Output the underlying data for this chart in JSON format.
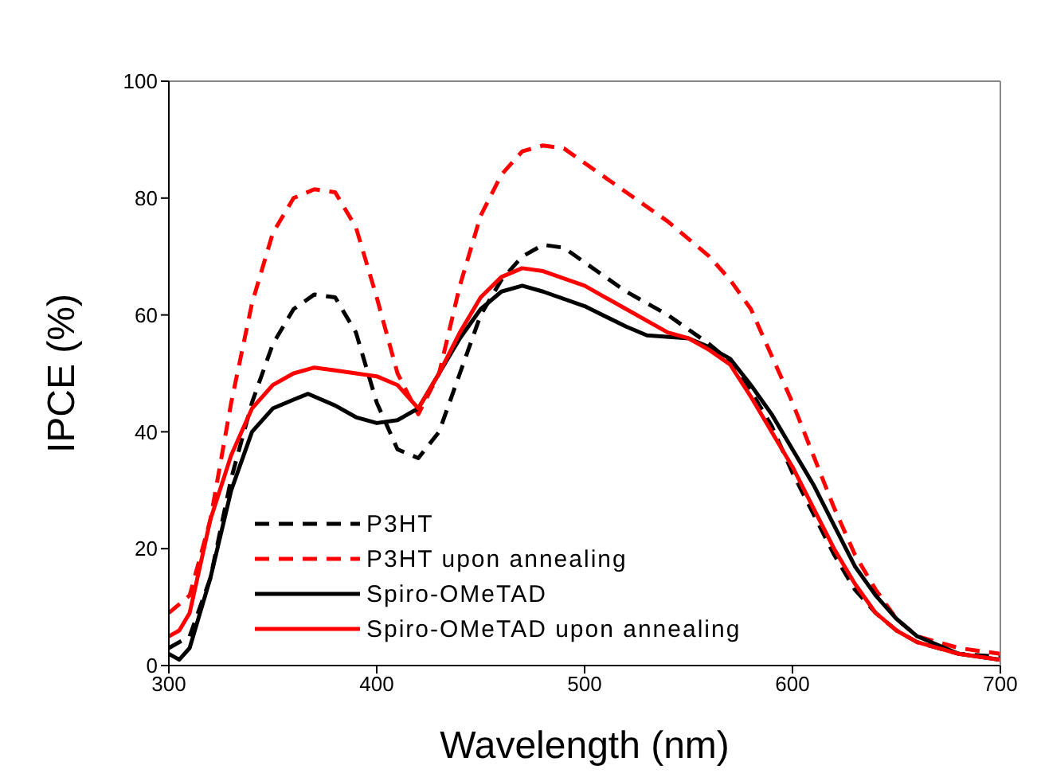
{
  "chart_data": {
    "type": "line",
    "xlabel": "Wavelength (nm)",
    "ylabel": "IPCE (%)",
    "xlim": [
      300,
      700
    ],
    "xticks": [
      300,
      400,
      500,
      600,
      700
    ],
    "ylim": [
      0,
      100
    ],
    "yticks": [
      0,
      20,
      40,
      60,
      80,
      100
    ],
    "legend": "bottom left",
    "marker": "none",
    "series": [
      {
        "name": "P3HT",
        "color": "#000000",
        "line_style": "dashed",
        "x": [
          300,
          310,
          320,
          330,
          340,
          350,
          360,
          370,
          380,
          390,
          400,
          410,
          420,
          430,
          440,
          450,
          460,
          470,
          480,
          490,
          500,
          520,
          540,
          560,
          570,
          580,
          590,
          600,
          610,
          620,
          630,
          640,
          650,
          660,
          680,
          700
        ],
        "values": [
          3,
          5,
          15,
          32,
          45,
          55,
          61,
          63.5,
          63,
          57,
          45,
          37,
          35.5,
          40,
          50,
          60,
          66,
          70,
          72,
          71.5,
          69,
          64,
          60,
          55,
          52,
          47,
          41,
          33,
          26,
          19,
          13,
          9,
          6,
          4,
          2,
          1.5
        ]
      },
      {
        "name": "P3HT upon annealing",
        "color": "#ff0000",
        "line_style": "dashed",
        "x": [
          300,
          310,
          320,
          330,
          340,
          350,
          360,
          370,
          380,
          390,
          400,
          410,
          420,
          430,
          440,
          450,
          460,
          470,
          480,
          490,
          500,
          520,
          540,
          560,
          570,
          580,
          590,
          600,
          610,
          620,
          630,
          640,
          650,
          660,
          680,
          700
        ],
        "values": [
          9,
          12,
          25,
          45,
          62,
          74,
          80,
          81.5,
          81,
          75,
          63,
          50,
          43,
          50,
          65,
          77,
          84,
          88,
          89,
          88.5,
          86,
          81,
          76,
          70,
          66,
          61,
          53,
          45,
          36,
          27,
          19,
          13,
          8,
          5,
          3,
          2
        ]
      },
      {
        "name": "Spiro-OMeTAD",
        "color": "#000000",
        "line_style": "solid",
        "x": [
          300,
          305,
          310,
          320,
          330,
          340,
          350,
          360,
          367,
          380,
          390,
          400,
          410,
          420,
          430,
          440,
          450,
          460,
          470,
          480,
          500,
          520,
          530,
          550,
          560,
          570,
          580,
          590,
          600,
          610,
          620,
          630,
          640,
          650,
          660,
          680,
          700
        ],
        "values": [
          2,
          1,
          3,
          15,
          30,
          40,
          44,
          45.5,
          46.5,
          44.5,
          42.5,
          41.5,
          42,
          44,
          50,
          56,
          61,
          64,
          65,
          64,
          61.5,
          58,
          56.5,
          56,
          54.5,
          52.5,
          48,
          43,
          37,
          31,
          24,
          17,
          12,
          8,
          5,
          2,
          1
        ]
      },
      {
        "name": "Spiro-OMeTAD upon annealing",
        "color": "#ff0000",
        "line_style": "solid",
        "x": [
          300,
          305,
          310,
          320,
          330,
          340,
          350,
          360,
          370,
          380,
          390,
          400,
          410,
          420,
          430,
          440,
          450,
          460,
          470,
          480,
          500,
          520,
          540,
          550,
          560,
          570,
          580,
          590,
          600,
          610,
          620,
          630,
          640,
          650,
          660,
          680,
          700
        ],
        "values": [
          5,
          6,
          9,
          25,
          36,
          44,
          48,
          50,
          51,
          50.5,
          50,
          49.5,
          48,
          44,
          50,
          57,
          63,
          66.5,
          68,
          67.5,
          65,
          61,
          57,
          56,
          54,
          51.5,
          46,
          40,
          34,
          27,
          20,
          14,
          9,
          6,
          4,
          2,
          1
        ]
      }
    ]
  }
}
